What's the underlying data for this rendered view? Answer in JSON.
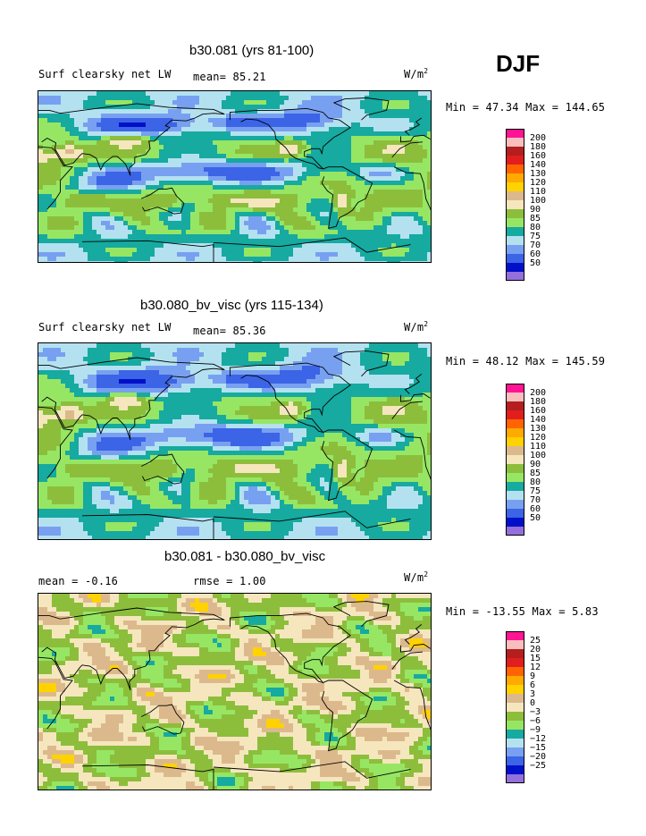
{
  "season": "DJF",
  "colors": [
    "#9370db",
    "#0010c8",
    "#3c64e6",
    "#78a0f0",
    "#b4e1f0",
    "#16aaa0",
    "#96e664",
    "#8cbe3c",
    "#f5e6be",
    "#dcb98c",
    "#ffd200",
    "#ffaa00",
    "#ff6400",
    "#e11e1e",
    "#b41e1e",
    "#fabebe",
    "#ff1493"
  ],
  "panels": [
    {
      "title": "b30.081 (yrs 81-100)",
      "label_left": "Surf clearsky net LW",
      "label_mid": "mean=  85.21",
      "units": "W/m",
      "units_sup": "2",
      "minmax": "Min =  47.34 Max = 144.65",
      "levels": [
        "200",
        "180",
        "160",
        "140",
        "130",
        "120",
        "110",
        "100",
        "90",
        "85",
        "80",
        "75",
        "70",
        "60",
        "50"
      ],
      "field": "full"
    },
    {
      "title": "b30.080_bv_visc (yrs 115-134)",
      "label_left": "Surf clearsky net LW",
      "label_mid": "mean=  85.36",
      "units": "W/m",
      "units_sup": "2",
      "minmax": "Min =  48.12 Max = 145.59",
      "levels": [
        "200",
        "180",
        "160",
        "140",
        "130",
        "120",
        "110",
        "100",
        "90",
        "85",
        "80",
        "75",
        "70",
        "60",
        "50"
      ],
      "field": "full"
    },
    {
      "title": "b30.081 - b30.080_bv_visc",
      "label_left": "mean =   -0.16",
      "label_mid": "rmse =    1.00",
      "units": "W/m",
      "units_sup": "2",
      "minmax": "Min = -13.55 Max =   5.83",
      "levels": [
        "25",
        "20",
        "15",
        "12",
        "9",
        "6",
        "3",
        "0",
        "−3",
        "−6",
        "−9",
        "−12",
        "−15",
        "−20",
        "−25"
      ],
      "field": "diff"
    }
  ]
}
